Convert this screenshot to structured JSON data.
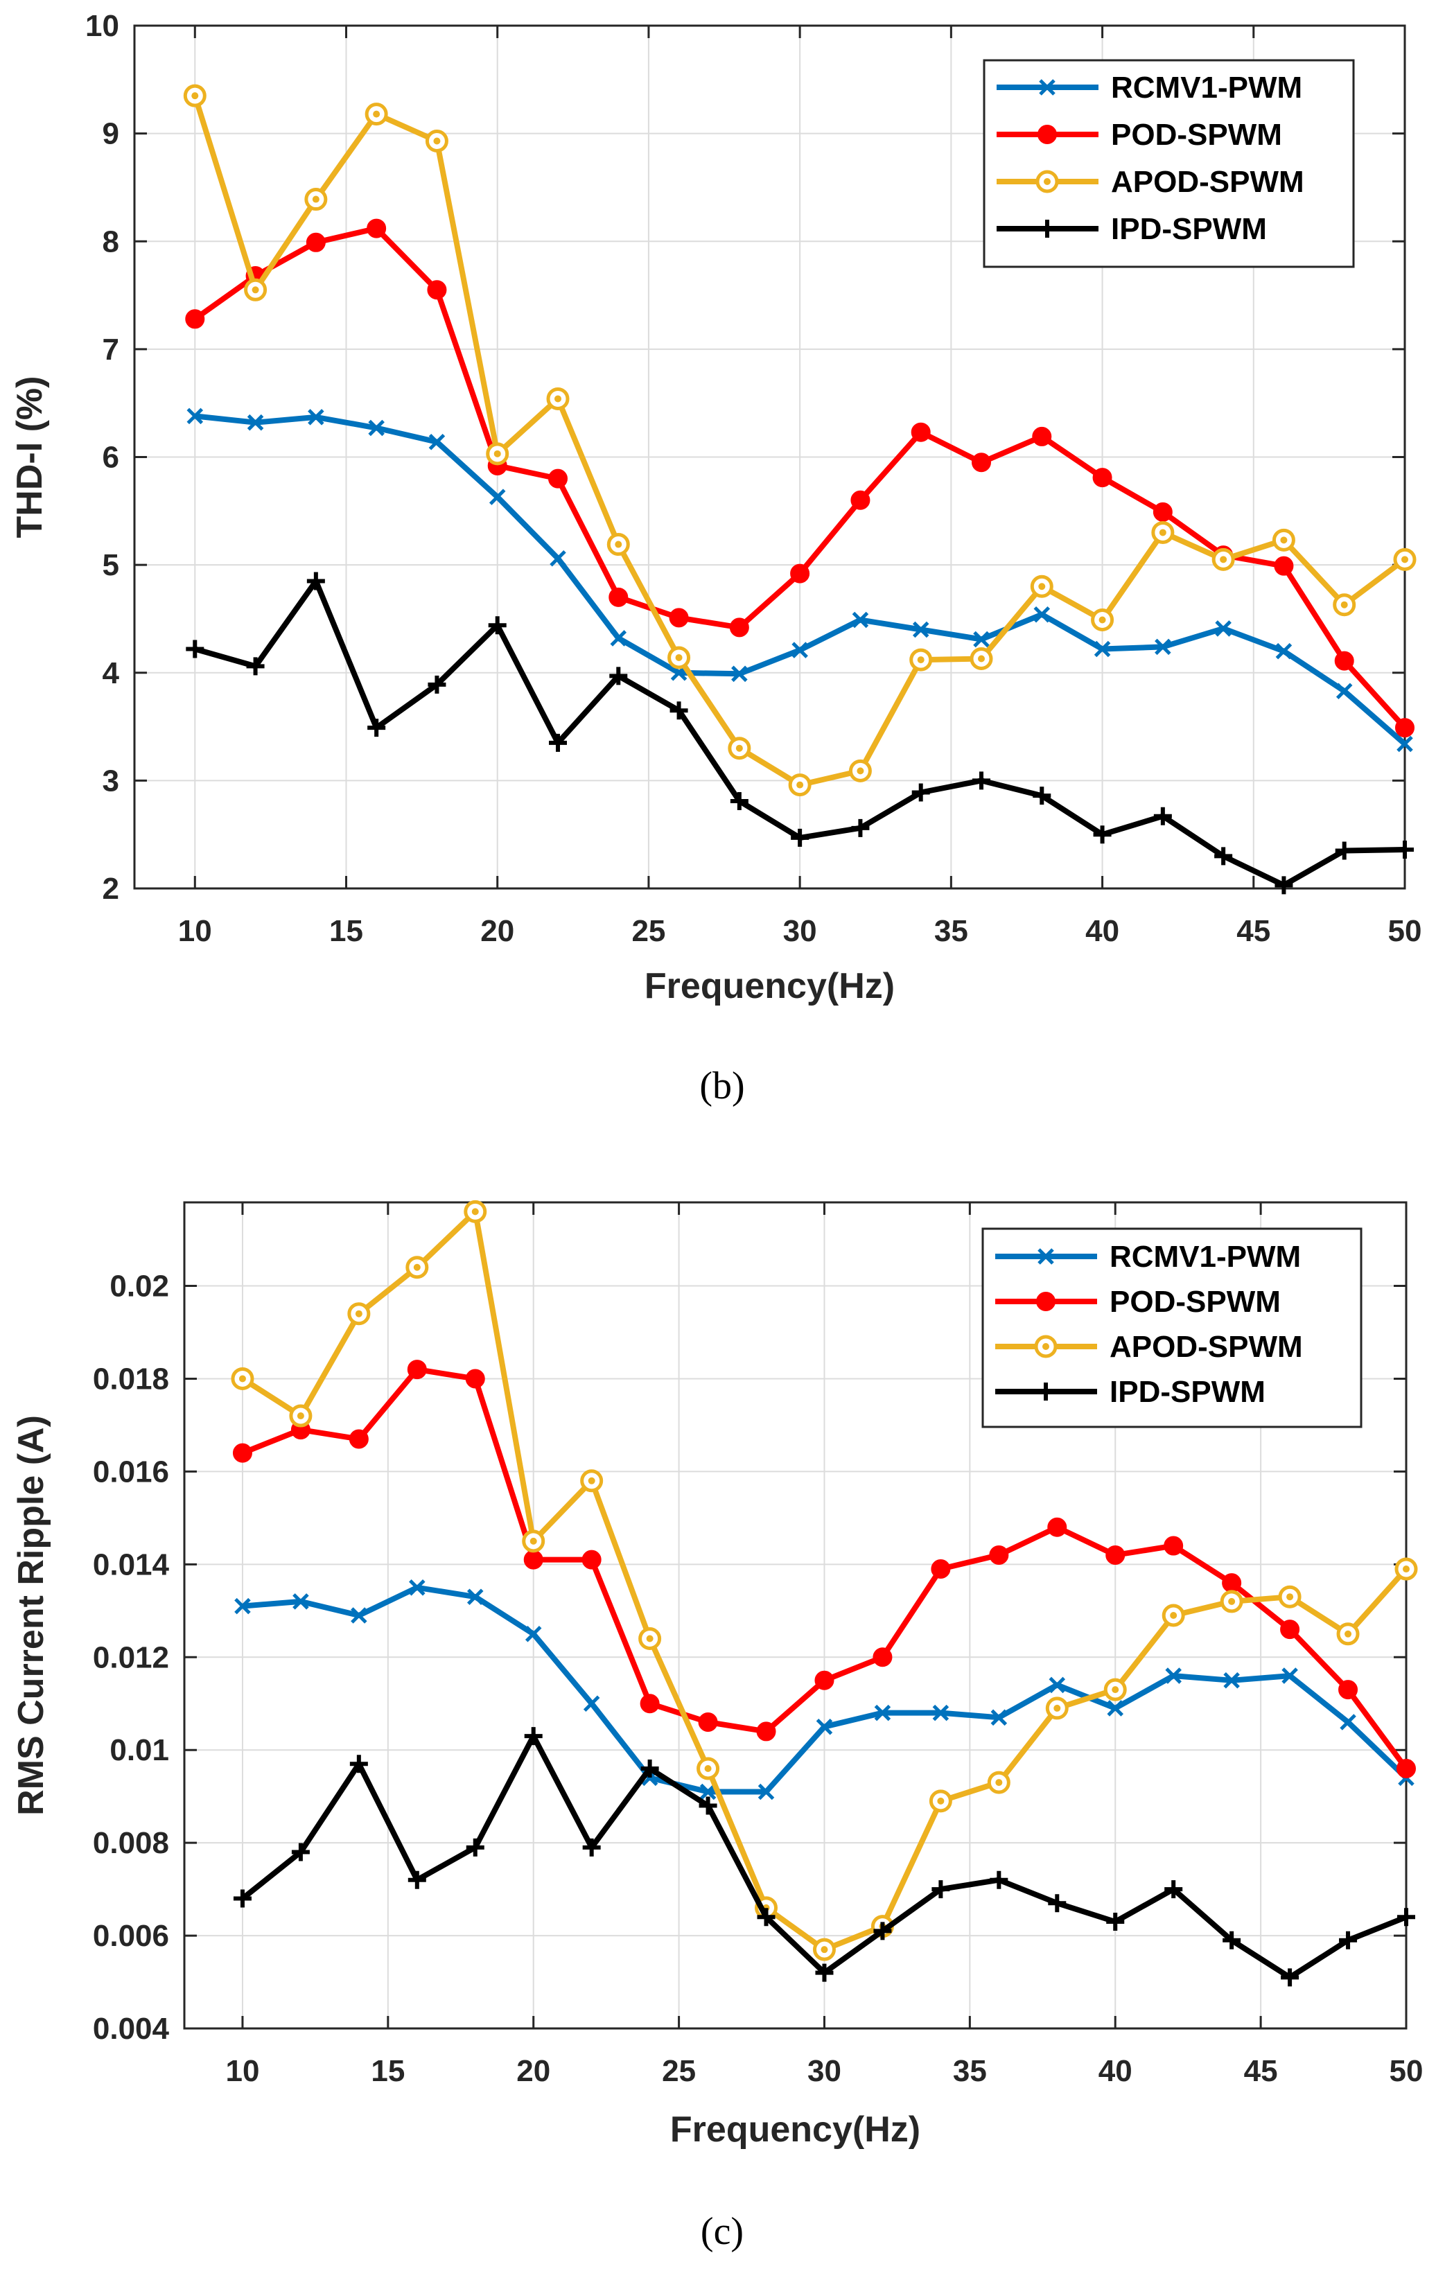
{
  "chart_data": [
    {
      "type": "line",
      "caption": "(b)",
      "xlabel": "Frequency(Hz)",
      "ylabel": "THD-I (%)",
      "xlim": [
        8,
        50
      ],
      "ylim": [
        2,
        10
      ],
      "xticks": [
        10,
        15,
        20,
        25,
        30,
        35,
        40,
        45,
        50
      ],
      "yticks": [
        2,
        3,
        4,
        5,
        6,
        7,
        8,
        9,
        10
      ],
      "ytick_labels": [
        "2",
        "3",
        "4",
        "5",
        "6",
        "7",
        "8",
        "9",
        "10"
      ],
      "grid": true,
      "legend_position": "top-right",
      "x": [
        10,
        12,
        14,
        16,
        18,
        20,
        22,
        24,
        26,
        28,
        30,
        32,
        34,
        36,
        38,
        40,
        42,
        44,
        46,
        48,
        50
      ],
      "series": [
        {
          "name": "RCMV1-PWM",
          "color": "#0072BD",
          "marker": "x",
          "values": [
            6.38,
            6.32,
            6.37,
            6.27,
            6.14,
            5.63,
            5.06,
            4.32,
            4.0,
            3.99,
            4.21,
            4.49,
            4.4,
            4.31,
            4.54,
            4.22,
            4.24,
            4.41,
            4.2,
            3.83,
            3.34
          ]
        },
        {
          "name": "POD-SPWM",
          "color": "#FF0000",
          "marker": "circle-filled",
          "values": [
            7.28,
            7.68,
            7.99,
            8.12,
            7.55,
            5.92,
            5.8,
            4.7,
            4.51,
            4.42,
            4.92,
            5.6,
            6.23,
            5.95,
            6.19,
            5.81,
            5.49,
            5.09,
            4.99,
            4.11,
            3.49
          ]
        },
        {
          "name": "APOD-SPWM",
          "color": "#EDB120",
          "marker": "circle-dot",
          "values": [
            9.35,
            7.55,
            8.39,
            9.18,
            8.93,
            6.03,
            6.54,
            5.19,
            4.14,
            3.3,
            2.96,
            3.09,
            4.12,
            4.13,
            4.8,
            4.49,
            5.3,
            5.05,
            5.23,
            4.63,
            5.05
          ]
        },
        {
          "name": "IPD-SPWM",
          "color": "#000000",
          "marker": "plus",
          "values": [
            4.22,
            4.06,
            4.85,
            3.49,
            3.89,
            4.44,
            3.35,
            3.97,
            3.65,
            2.81,
            2.47,
            2.56,
            2.89,
            3.0,
            2.86,
            2.5,
            2.67,
            2.3,
            2.03,
            2.35,
            2.36
          ]
        }
      ]
    },
    {
      "type": "line",
      "caption": "(c)",
      "xlabel": "Frequency(Hz)",
      "ylabel": "RMS Current Ripple (A)",
      "xlim": [
        8,
        50
      ],
      "ylim": [
        0.004,
        0.0218
      ],
      "xticks": [
        10,
        15,
        20,
        25,
        30,
        35,
        40,
        45,
        50
      ],
      "yticks": [
        0.004,
        0.006,
        0.008,
        0.01,
        0.012,
        0.014,
        0.016,
        0.018,
        0.02
      ],
      "ytick_labels": [
        "0.004",
        "0.006",
        "0.008",
        "0.01",
        "0.012",
        "0.014",
        "0.016",
        "0.018",
        "0.02"
      ],
      "grid": true,
      "legend_position": "top-right",
      "x": [
        10,
        12,
        14,
        16,
        18,
        20,
        22,
        24,
        26,
        28,
        30,
        32,
        34,
        36,
        38,
        40,
        42,
        44,
        46,
        48,
        50
      ],
      "series": [
        {
          "name": "RCMV1-PWM",
          "color": "#0072BD",
          "marker": "x",
          "values": [
            0.0131,
            0.0132,
            0.0129,
            0.0135,
            0.0133,
            0.0125,
            0.011,
            0.0094,
            0.0091,
            0.0091,
            0.0105,
            0.0108,
            0.0108,
            0.0107,
            0.0114,
            0.0109,
            0.0116,
            0.0115,
            0.0116,
            0.0106,
            0.0094
          ]
        },
        {
          "name": "POD-SPWM",
          "color": "#FF0000",
          "marker": "circle-filled",
          "values": [
            0.0164,
            0.0169,
            0.0167,
            0.0182,
            0.018,
            0.0141,
            0.0141,
            0.011,
            0.0106,
            0.0104,
            0.0115,
            0.012,
            0.0139,
            0.0142,
            0.0148,
            0.0142,
            0.0144,
            0.0136,
            0.0126,
            0.0113,
            0.0096
          ]
        },
        {
          "name": "APOD-SPWM",
          "color": "#EDB120",
          "marker": "circle-dot",
          "values": [
            0.018,
            0.0172,
            0.0194,
            0.0204,
            0.0216,
            0.0145,
            0.0158,
            0.0124,
            0.0096,
            0.0066,
            0.0057,
            0.0062,
            0.0089,
            0.0093,
            0.0109,
            0.0113,
            0.0129,
            0.0132,
            0.0133,
            0.0125,
            0.0139
          ]
        },
        {
          "name": "IPD-SPWM",
          "color": "#000000",
          "marker": "plus",
          "values": [
            0.0068,
            0.0078,
            0.0097,
            0.0072,
            0.0079,
            0.0103,
            0.0079,
            0.0096,
            0.0088,
            0.0064,
            0.0052,
            0.0061,
            0.007,
            0.0072,
            0.0067,
            0.0063,
            0.007,
            0.0059,
            0.0051,
            0.0059,
            0.0064
          ]
        }
      ]
    }
  ]
}
